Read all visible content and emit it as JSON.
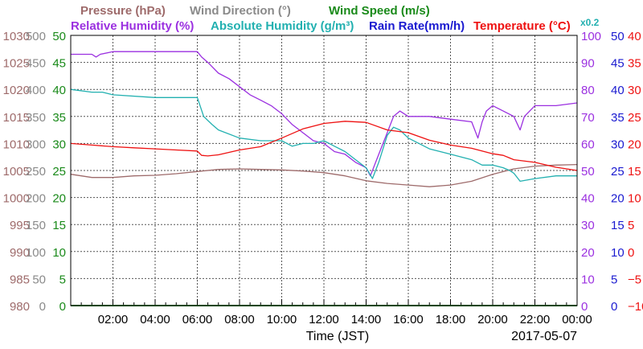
{
  "chart_data": {
    "type": "line",
    "date": "2017-05-07",
    "xlabel": "Time (JST)",
    "x_tick_labels": [
      "02:00",
      "04:00",
      "06:00",
      "08:00",
      "10:00",
      "12:00",
      "14:00",
      "16:00",
      "18:00",
      "20:00",
      "22:00",
      "00:00"
    ],
    "x_range_hours": [
      0,
      24
    ],
    "grid": true,
    "legend": {
      "row1": [
        {
          "key": "pressure",
          "text": "Pressure (hPa)",
          "color": "#9e6b6b"
        },
        {
          "key": "wind_direction",
          "text": "Wind Direction (°)",
          "color": "#8a8a8a"
        },
        {
          "key": "wind_speed",
          "text": "Wind Speed (m/s)",
          "color": "#1a8a1a"
        }
      ],
      "row2": [
        {
          "key": "rh",
          "text": "Relative Humidity (%)",
          "color": "#9b30e0"
        },
        {
          "key": "ah",
          "text": "Absolute Humidity (g/m³)",
          "color": "#22b0b0"
        },
        {
          "key": "rain",
          "text": "Rain Rate(mm/h)",
          "color": "#1a1ad0"
        },
        {
          "key": "temp",
          "text": "Temperature (°C)",
          "color": "#ee1111"
        }
      ],
      "ah_scale_note": "x0.2"
    },
    "left_axes": [
      {
        "name": "Pressure (hPa)",
        "color": "#9e6b6b",
        "range": [
          980,
          1030
        ],
        "ticks": [
          "1030",
          "1025",
          "1020",
          "1015",
          "1010",
          "1005",
          "1000",
          "995",
          "990",
          "985",
          "980"
        ]
      },
      {
        "name": "Wind Direction (°)",
        "color": "#8a8a8a",
        "range": [
          0,
          500
        ],
        "ticks": [
          "500",
          "450",
          "400",
          "350",
          "300",
          "250",
          "200",
          "150",
          "100",
          "50",
          "0"
        ]
      },
      {
        "name": "Wind Speed (m/s)",
        "color": "#1a8a1a",
        "range": [
          0,
          50
        ],
        "ticks": [
          "50",
          "45",
          "40",
          "35",
          "30",
          "25",
          "20",
          "15",
          "10",
          "5",
          "0"
        ]
      }
    ],
    "right_axes": [
      {
        "name": "Relative Humidity (%)",
        "color": "#9b30e0",
        "range": [
          0,
          100
        ],
        "ticks": [
          "100",
          "90",
          "80",
          "70",
          "60",
          "50",
          "40",
          "30",
          "20",
          "10",
          "0"
        ]
      },
      {
        "name": "Rain Rate(mm/h)",
        "color": "#1a1ad0",
        "range": [
          0,
          50
        ],
        "ticks": [
          "50",
          "45",
          "40",
          "35",
          "30",
          "25",
          "20",
          "15",
          "10",
          "5",
          "0"
        ]
      },
      {
        "name": "Temperature (°C)",
        "color": "#ee1111",
        "range": [
          -10,
          40
        ],
        "ticks": [
          "40",
          "35",
          "30",
          "25",
          "20",
          "15",
          "10",
          "5",
          "0",
          "−5",
          "−10"
        ]
      }
    ],
    "series": [
      {
        "name": "Pressure (hPa)",
        "axis": "pressure",
        "color": "#9e6b6b",
        "x": [
          0,
          1,
          2,
          3,
          4,
          5,
          6,
          7,
          8,
          9,
          10,
          11,
          12,
          13,
          14,
          15,
          16,
          17,
          18,
          19,
          20,
          21,
          22,
          23,
          24
        ],
        "y": [
          1004.3,
          1003.7,
          1003.7,
          1004.0,
          1004.1,
          1004.4,
          1004.8,
          1005.2,
          1005.3,
          1005.2,
          1005.1,
          1004.9,
          1004.6,
          1004.0,
          1003.1,
          1002.6,
          1002.3,
          1002.0,
          1002.3,
          1003.0,
          1004.3,
          1005.3,
          1005.8,
          1006.0,
          1006.1
        ]
      },
      {
        "name": "Relative Humidity (%)",
        "axis": "rh",
        "color": "#9b30e0",
        "x": [
          0,
          1,
          1.2,
          1.4,
          2,
          4,
          6,
          6.2,
          6.5,
          7,
          7.5,
          8,
          8.5,
          9,
          9.5,
          10,
          10.5,
          11,
          11.5,
          12,
          12.5,
          13,
          13.5,
          14,
          14.2,
          14.5,
          15,
          15.3,
          15.6,
          16,
          17,
          18,
          19,
          19.3,
          19.5,
          19.7,
          20,
          20.5,
          21,
          21.3,
          21.5,
          22,
          23,
          24
        ],
        "y": [
          93,
          93,
          92,
          93,
          94,
          94,
          94,
          92,
          90,
          86,
          84,
          81,
          78,
          76,
          74,
          71,
          67,
          64,
          61,
          60,
          57,
          56,
          53,
          51,
          48,
          54,
          64,
          70,
          72,
          70,
          70,
          69,
          68,
          62,
          68,
          72,
          74,
          72,
          70,
          65,
          70,
          74,
          74,
          75
        ]
      },
      {
        "name": "Absolute Humidity (g/m³)",
        "axis": "rh",
        "color": "#22b0b0",
        "x": [
          0,
          1,
          1.5,
          2,
          4,
          6,
          6.3,
          6.7,
          7,
          8,
          9,
          10,
          10.5,
          11,
          11.5,
          12,
          12.5,
          13,
          13.5,
          14,
          14.3,
          14.6,
          15,
          15.3,
          15.6,
          16,
          17,
          18,
          19,
          19.5,
          20,
          20.5,
          20.8,
          21,
          21.3,
          22,
          23,
          24
        ],
        "y": [
          80,
          79,
          79,
          78,
          77,
          77,
          70,
          67,
          65,
          62,
          61,
          61,
          59,
          60,
          60,
          61,
          59,
          57,
          54,
          51,
          47,
          53,
          63,
          66,
          65,
          62,
          58,
          56,
          54,
          52,
          52,
          51,
          50,
          49,
          46,
          47,
          48,
          48
        ]
      },
      {
        "name": "Temperature (°C)",
        "axis": "temp",
        "color": "#ee1111",
        "x": [
          0,
          1,
          2,
          3,
          4,
          5,
          6,
          6.2,
          6.5,
          7,
          8,
          9,
          10,
          11,
          12,
          13,
          14,
          15,
          16,
          17,
          18,
          19,
          20,
          20.5,
          21,
          22,
          23,
          24
        ],
        "y": [
          20,
          19.7,
          19.4,
          19.2,
          19,
          18.8,
          18.6,
          17.8,
          17.7,
          17.9,
          18.8,
          19.4,
          21,
          22.7,
          23.7,
          24.1,
          23.9,
          22.5,
          22,
          20.6,
          19.7,
          19.1,
          18.1,
          17.8,
          17,
          16.5,
          15.6,
          15
        ]
      },
      {
        "name": "Wind Speed (m/s)",
        "axis": "wind_speed",
        "color": "#1a8a1a",
        "x": [
          0,
          24
        ],
        "y": [
          0,
          0
        ]
      }
    ]
  }
}
